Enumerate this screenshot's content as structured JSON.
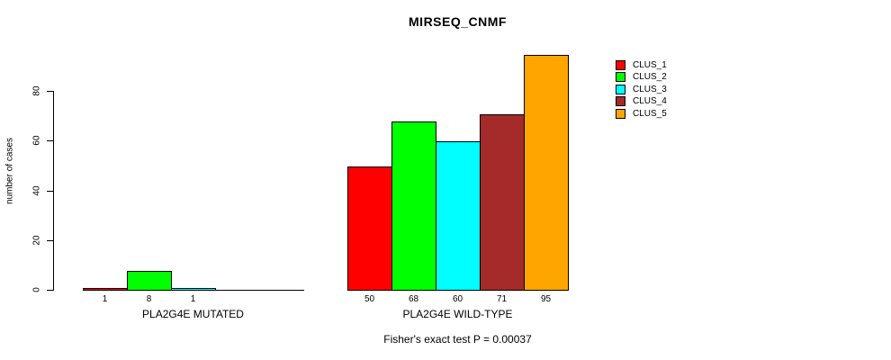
{
  "chart_data": {
    "type": "bar",
    "title": "MIRSEQ_CNMF",
    "ylabel": "number of cases",
    "annotation": "Fisher's exact test P = 0.00037",
    "groups": [
      {
        "label": "PLA2G4E MUTATED",
        "values": [
          1,
          8,
          1,
          0,
          0
        ]
      },
      {
        "label": "PLA2G4E WILD-TYPE",
        "values": [
          50,
          68,
          60,
          71,
          95
        ]
      }
    ],
    "series": [
      {
        "name": "CLUS_1",
        "color": "#ff0000"
      },
      {
        "name": "CLUS_2",
        "color": "#00ff00"
      },
      {
        "name": "CLUS_3",
        "color": "#00ffff"
      },
      {
        "name": "CLUS_4",
        "color": "#a52a2a"
      },
      {
        "name": "CLUS_5",
        "color": "#ffa500"
      }
    ],
    "yticks": [
      0,
      20,
      40,
      60,
      80
    ],
    "ylim": [
      0,
      95
    ],
    "grid": false,
    "bar_value_labels": true,
    "zero_bars_unlabeled": true,
    "legend_position": "right",
    "axis_color": "#000000",
    "bar_border_color": "#000000"
  }
}
